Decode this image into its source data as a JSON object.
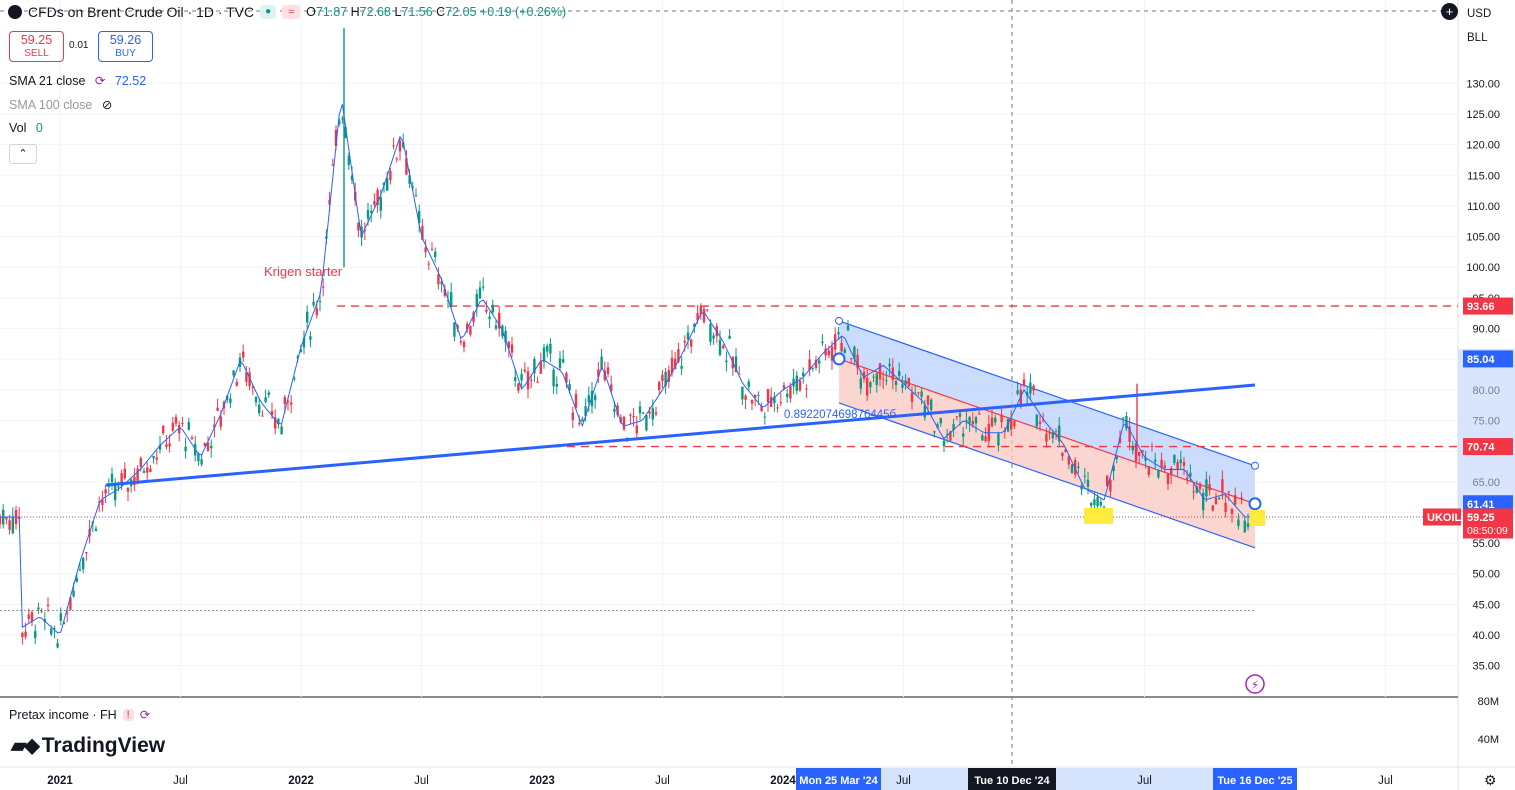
{
  "header": {
    "title": "CFDs on Brent Crude Oil · 1D · TVC",
    "ohlc": {
      "o_label": "O",
      "o": "71.87",
      "h_label": "H",
      "h": "72.68",
      "l_label": "L",
      "l": "71.56",
      "c_label": "C",
      "c": "72.05",
      "change": "+0.19 (+0.26%)"
    }
  },
  "trade": {
    "sell_price": "59.25",
    "sell_label": "SELL",
    "spread": "0.01",
    "buy_price": "59.26",
    "buy_label": "BUY"
  },
  "indicators": {
    "sma21_label": "SMA 21 close",
    "sma21_value": "72.52",
    "sma100_label": "SMA 100 close",
    "vol_label": "Vol",
    "vol_value": "0"
  },
  "annotations": {
    "krigen": "Krigen starter",
    "fib_text": "0.892207469876445б"
  },
  "right_panel": {
    "currency": "USD",
    "unit": "BLL"
  },
  "pane2": {
    "label": "Pretax income · FH",
    "ticks": [
      "80M",
      "40M"
    ]
  },
  "brand": {
    "name": "TradingView"
  },
  "colors": {
    "up": "#089981",
    "down": "#f23645",
    "accent": "#2962ff",
    "sma": "#2962ff",
    "channel_up": "#bbd0fb",
    "channel_down": "#f9c8c2"
  },
  "chart_data": {
    "type": "candlestick",
    "symbol": "UKOIL",
    "interval": "1D",
    "y_ticks": [
      35,
      40,
      45,
      50,
      55,
      60,
      65,
      70,
      75,
      80,
      85,
      90,
      95,
      100,
      105,
      110,
      115,
      120,
      125,
      130
    ],
    "ylim": [
      31.5,
      139
    ],
    "x_ticks": [
      "2021",
      "Jul",
      "2022",
      "Jul",
      "2023",
      "Jul",
      "2024",
      "Jul",
      "Jul",
      "Jul"
    ],
    "x_range": [
      "2020-12",
      "2026-08"
    ],
    "price_approx": [
      [
        "2020-11",
        41
      ],
      [
        "2020-12",
        43
      ],
      [
        "2021-01",
        40
      ],
      [
        "2021-02",
        52
      ],
      [
        "2021-03",
        62
      ],
      [
        "2021-04",
        64
      ],
      [
        "2021-05",
        67
      ],
      [
        "2021-06",
        71
      ],
      [
        "2021-07",
        74
      ],
      [
        "2021-08",
        69
      ],
      [
        "2021-09",
        76
      ],
      [
        "2021-10",
        85
      ],
      [
        "2021-11",
        78
      ],
      [
        "2021-12",
        74
      ],
      [
        "2022-01",
        87
      ],
      [
        "2022-02",
        96
      ],
      [
        "2022-03",
        128
      ],
      [
        "2022-04",
        105
      ],
      [
        "2022-05",
        112
      ],
      [
        "2022-06",
        122
      ],
      [
        "2022-07",
        105
      ],
      [
        "2022-08",
        98
      ],
      [
        "2022-09",
        88
      ],
      [
        "2022-10",
        95
      ],
      [
        "2022-11",
        90
      ],
      [
        "2022-12",
        80
      ],
      [
        "2023-01",
        85
      ],
      [
        "2023-02",
        83
      ],
      [
        "2023-03",
        74
      ],
      [
        "2023-04",
        84
      ],
      [
        "2023-05",
        74
      ],
      [
        "2023-06",
        75
      ],
      [
        "2023-07",
        80
      ],
      [
        "2023-08",
        86
      ],
      [
        "2023-09",
        93
      ],
      [
        "2023-10",
        88
      ],
      [
        "2023-11",
        81
      ],
      [
        "2023-12",
        77
      ],
      [
        "2024-01",
        80
      ],
      [
        "2024-02",
        82
      ],
      [
        "2024-03",
        86
      ],
      [
        "2024-04",
        89
      ],
      [
        "2024-05",
        82
      ],
      [
        "2024-06",
        84
      ],
      [
        "2024-07",
        81
      ],
      [
        "2024-08",
        78
      ],
      [
        "2024-09",
        72
      ],
      [
        "2024-10",
        75
      ],
      [
        "2024-11",
        73
      ],
      [
        "2024-12",
        73
      ],
      [
        "2025-01",
        80
      ],
      [
        "2025-02",
        75
      ],
      [
        "2025-03",
        71
      ],
      [
        "2025-04",
        64
      ],
      [
        "2025-05",
        62
      ],
      [
        "2025-06",
        75
      ],
      [
        "2025-07",
        69
      ],
      [
        "2025-08",
        67
      ],
      [
        "2025-09",
        67
      ],
      [
        "2025-10",
        62
      ],
      [
        "2025-11",
        63
      ],
      [
        "2025-12",
        59.25
      ]
    ],
    "price_labels": [
      {
        "text": "93.66",
        "value": 93.66,
        "color": "#f23645"
      },
      {
        "text": "85.04",
        "value": 85.04,
        "color": "#2962ff"
      },
      {
        "text": "70.74",
        "value": 70.74,
        "color": "#f23645"
      },
      {
        "text": "61.41",
        "value": 61.41,
        "color": "#2962ff"
      },
      {
        "text": "59.25",
        "value": 59.25,
        "color": "#f23645",
        "symbol": "UKOIL",
        "countdown": "08:50:09"
      }
    ],
    "h_levels": [
      93.66,
      70.74,
      44
    ],
    "x_highlights": [
      "Mon 25 Mar '24",
      "Tue 10 Dec '24",
      "Tue 16 Dec '25"
    ],
    "legend": "none"
  }
}
